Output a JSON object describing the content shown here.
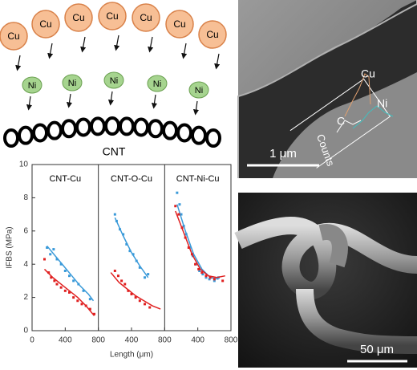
{
  "schematic": {
    "cu_labels": [
      "Cu",
      "Cu",
      "Cu",
      "Cu",
      "Cu",
      "Cu",
      "Cu"
    ],
    "ni_labels": [
      "Ni",
      "Ni",
      "Ni",
      "Ni",
      "Ni"
    ],
    "cnt_label": "CNT"
  },
  "sem_top": {
    "labels": [
      "Cu",
      "Ni",
      "C",
      "Counts"
    ],
    "scale_bar": "1 μm"
  },
  "sem_bottom": {
    "scale_bar": "50 μm"
  },
  "chart_data": {
    "type": "scatter",
    "y_label": "IFBS (MPa)",
    "x_label": "Length (μm)",
    "ylim": [
      0,
      10
    ],
    "yticks": [
      0,
      2,
      4,
      6,
      8,
      10
    ],
    "xlim": [
      0,
      800
    ],
    "panels": [
      {
        "title": "CNT-Cu",
        "xticks": [
          0,
          400,
          800
        ],
        "series": [
          {
            "mode": "markers",
            "color": "#3a9ad9",
            "x": [
              180,
              220,
              260,
              300,
              350,
              400,
              450,
              500,
              560,
              620,
              700
            ],
            "values": [
              5.0,
              4.6,
              4.9,
              4.3,
              4.0,
              3.6,
              3.3,
              3.0,
              2.8,
              2.4,
              1.9
            ]
          },
          {
            "mode": "line",
            "color": "#3a9ad9",
            "x": [
              180,
              280,
              380,
              480,
              580,
              680,
              740
            ],
            "values": [
              5.1,
              4.5,
              3.9,
              3.3,
              2.7,
              2.2,
              1.8
            ]
          },
          {
            "mode": "markers",
            "color": "#e02020",
            "x": [
              150,
              200,
              230,
              270,
              300,
              350,
              400,
              450,
              500,
              550,
              600,
              650,
              700,
              750
            ],
            "values": [
              4.3,
              3.5,
              3.2,
              3.0,
              2.8,
              2.6,
              2.4,
              2.3,
              2.0,
              1.8,
              1.6,
              1.5,
              1.3,
              1.0
            ]
          },
          {
            "mode": "line",
            "color": "#e02020",
            "x": [
              150,
              250,
              350,
              450,
              550,
              650,
              750
            ],
            "values": [
              3.7,
              3.2,
              2.8,
              2.4,
              2.0,
              1.5,
              0.9
            ]
          }
        ]
      },
      {
        "title": "CNT-O-Cu",
        "xticks": [
          400,
          800
        ],
        "series": [
          {
            "mode": "markers",
            "color": "#3a9ad9",
            "x": [
              200,
              220,
              260,
              300,
              340,
              380,
              420,
              460,
              500,
              560,
              600
            ],
            "values": [
              7.0,
              6.6,
              6.1,
              5.8,
              5.2,
              4.8,
              4.6,
              4.2,
              3.8,
              3.2,
              3.4
            ]
          },
          {
            "mode": "line",
            "color": "#3a9ad9",
            "x": [
              200,
              300,
              400,
              500,
              600
            ],
            "values": [
              6.8,
              5.7,
              4.7,
              3.9,
              3.2
            ]
          },
          {
            "mode": "markers",
            "color": "#e02020",
            "x": [
              200,
              240,
              280,
              320,
              360,
              400,
              450,
              500,
              560,
              620
            ],
            "values": [
              3.6,
              3.3,
              3.0,
              2.8,
              2.4,
              2.2,
              2.0,
              1.8,
              1.6,
              1.4
            ]
          },
          {
            "mode": "line",
            "color": "#e02020",
            "x": [
              150,
              250,
              350,
              450,
              550,
              650,
              750
            ],
            "values": [
              3.5,
              2.9,
              2.5,
              2.1,
              1.8,
              1.5,
              1.3
            ]
          }
        ]
      },
      {
        "title": "CNT-Ni-Cu",
        "xticks": [
          400,
          800
        ],
        "series": [
          {
            "mode": "markers",
            "color": "#3a9ad9",
            "x": [
              150,
              180,
              200,
              230,
              260,
              300,
              340,
              380,
              420,
              460,
              500,
              540,
              600,
              650
            ],
            "values": [
              8.3,
              7.6,
              7.0,
              6.3,
              5.8,
              5.0,
              4.5,
              4.0,
              3.6,
              3.4,
              3.2,
              3.1,
              3.0,
              3.2
            ]
          },
          {
            "mode": "line",
            "color": "#3a9ad9",
            "x": [
              150,
              250,
              350,
              450,
              550,
              650
            ],
            "values": [
              7.6,
              6.0,
              4.6,
              3.7,
              3.2,
              3.1
            ]
          },
          {
            "mode": "markers",
            "color": "#e02020",
            "x": [
              130,
              170,
              210,
              250,
              290,
              330,
              370,
              410,
              450,
              500,
              550,
              600,
              700
            ],
            "values": [
              7.5,
              7.0,
              6.2,
              5.6,
              5.0,
              4.6,
              4.0,
              3.7,
              3.5,
              3.3,
              3.2,
              3.1,
              3.0
            ]
          },
          {
            "mode": "line",
            "color": "#e02020",
            "x": [
              130,
              230,
              330,
              430,
              530,
              630,
              730
            ],
            "values": [
              7.2,
              5.9,
              4.6,
              3.7,
              3.3,
              3.2,
              3.3
            ]
          }
        ]
      }
    ]
  }
}
